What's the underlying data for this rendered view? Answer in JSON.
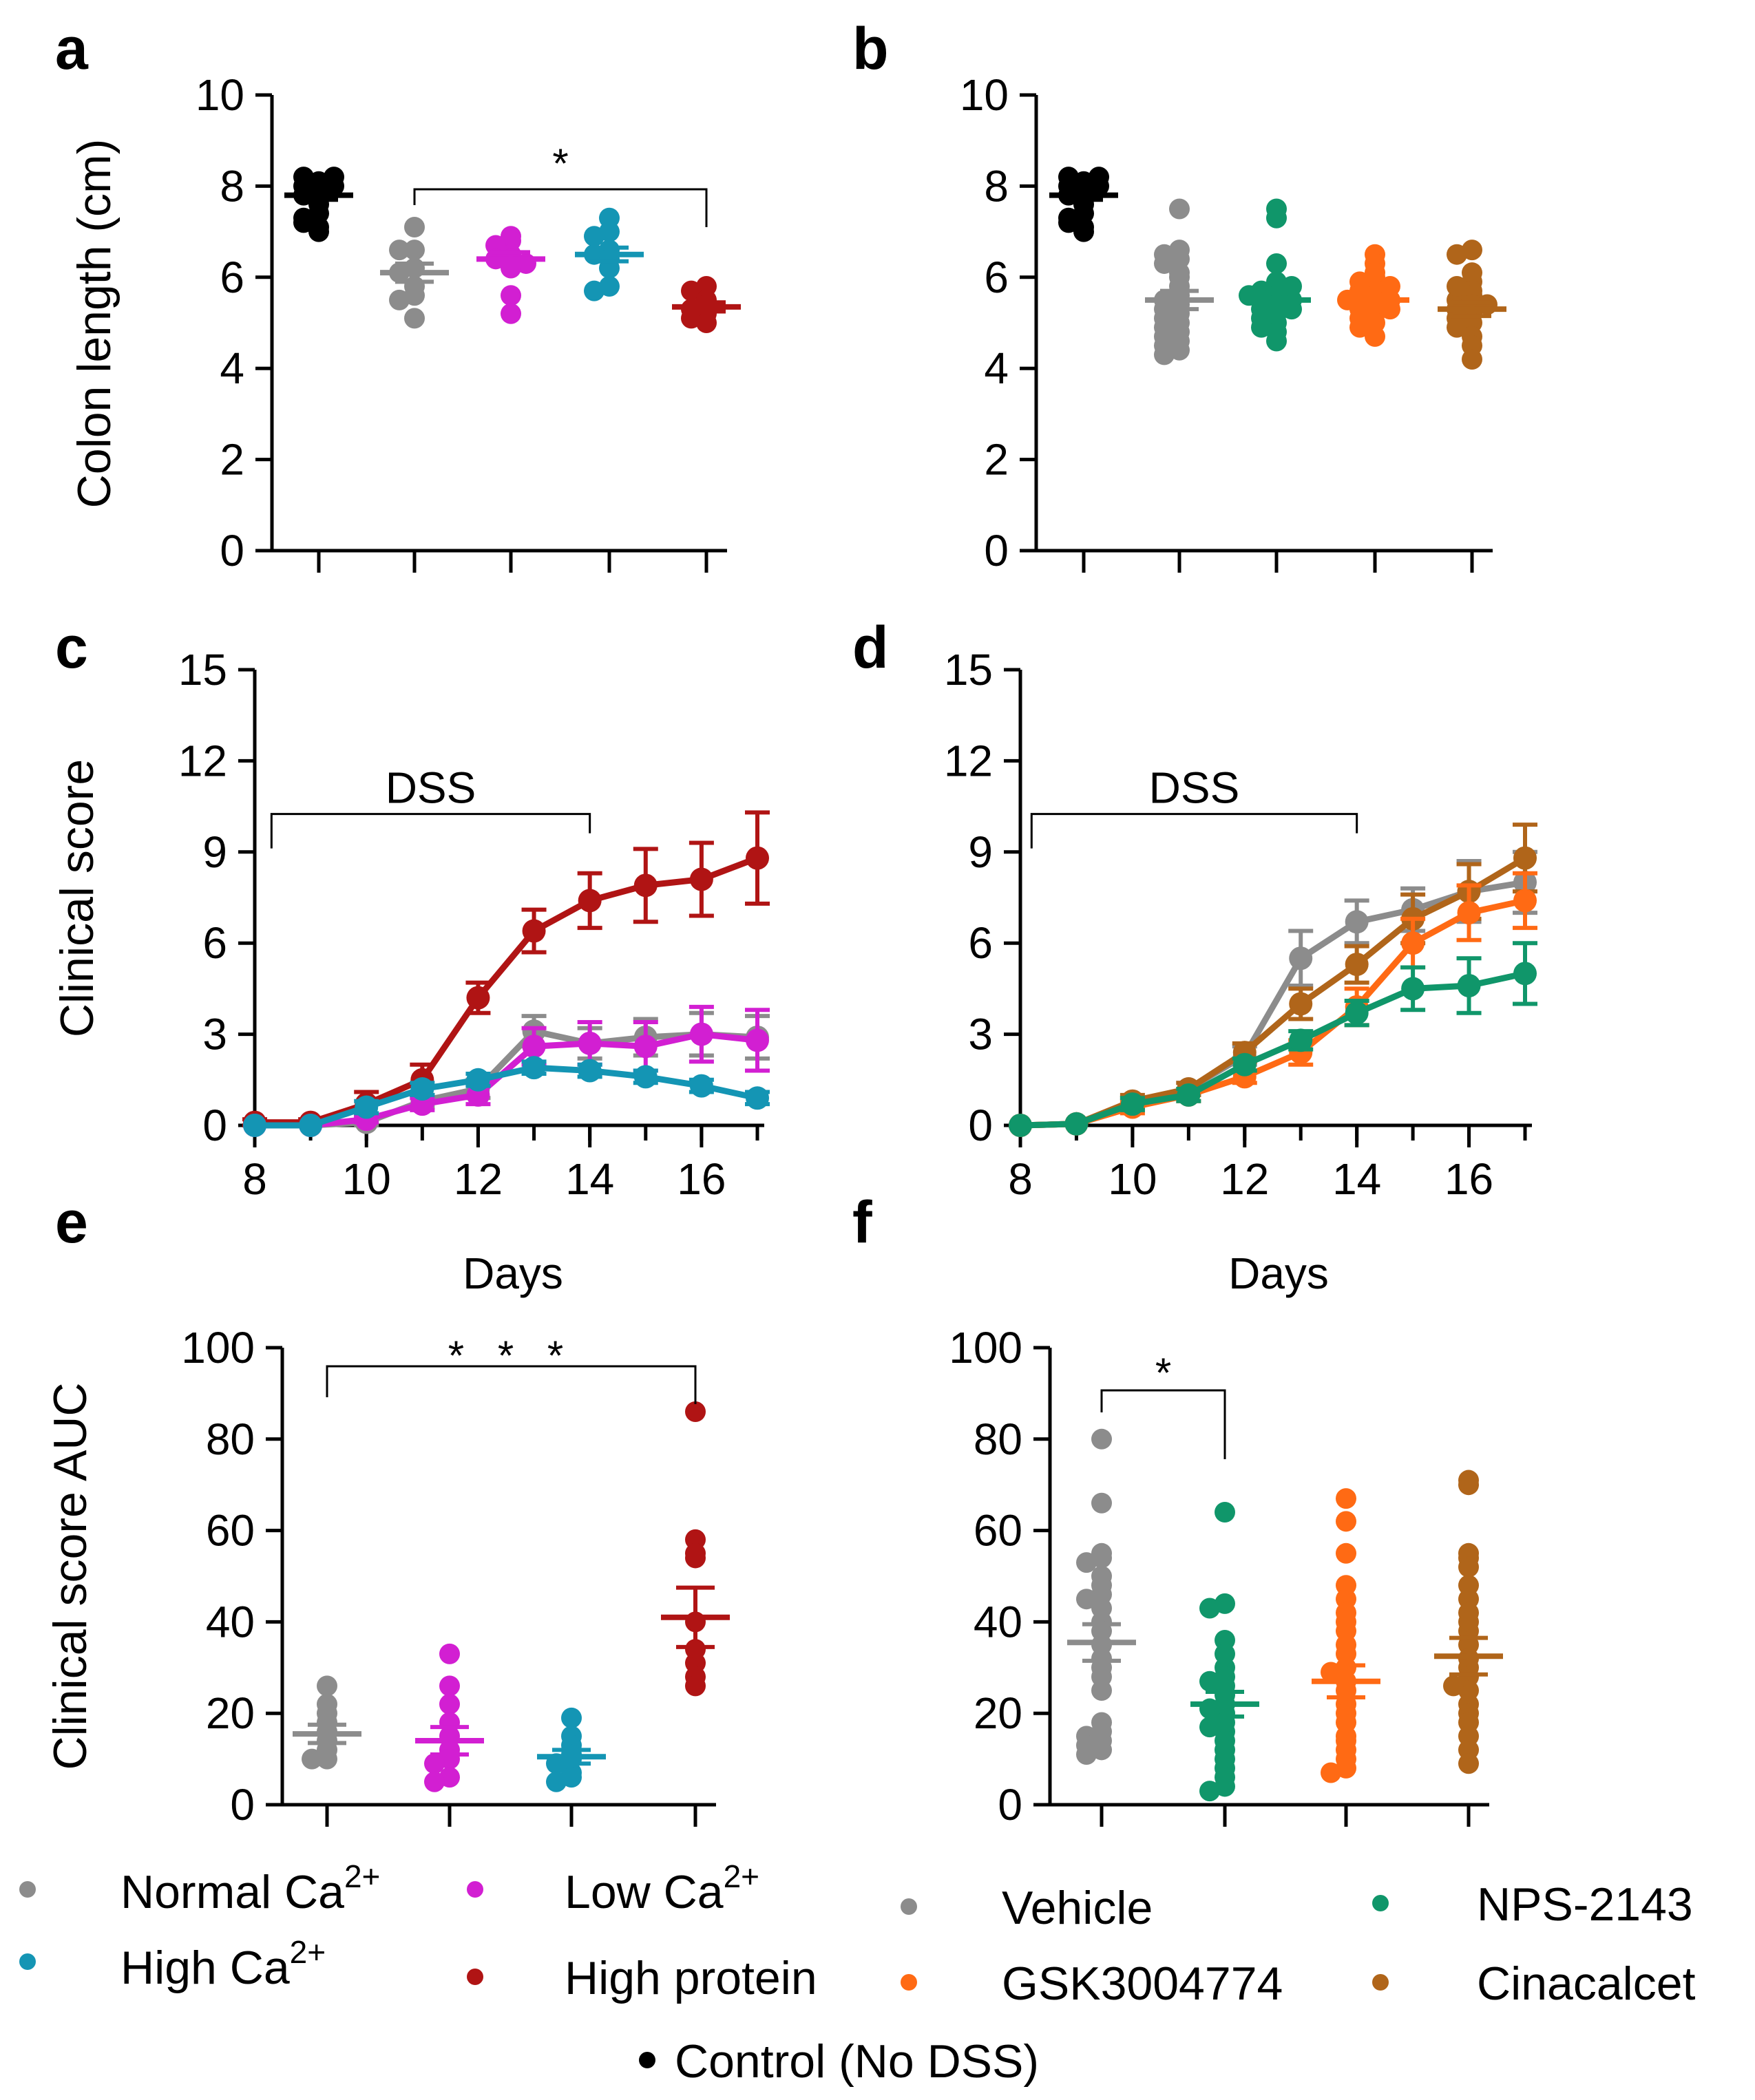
{
  "colors": {
    "control": "#000000",
    "normal_ca": "#8c8c8c",
    "low_ca": "#d21fd2",
    "high_ca": "#1495b4",
    "high_protein": "#b01414",
    "vehicle": "#8c8c8c",
    "nps2143": "#10966a",
    "gsk3004774": "#ff6a14",
    "cinacalcet": "#b0651a"
  },
  "chart_data": [
    {
      "panel": "a",
      "type": "scatter",
      "ylabel": "Colon length (cm)",
      "ylim": [
        0,
        10
      ],
      "yticks": [
        0,
        2,
        4,
        6,
        8,
        10
      ],
      "annotation": "*",
      "annotation_between": [
        "Normal Ca2+",
        "High protein"
      ],
      "groups": [
        {
          "name": "Control (No DSS)",
          "color_key": "control",
          "mean": 7.8,
          "sem": 0.1,
          "points": [
            7.0,
            7.1,
            7.2,
            7.4,
            7.6,
            7.7,
            7.8,
            7.9,
            8.0,
            8.0,
            8.1,
            8.2,
            8.2,
            7.3
          ]
        },
        {
          "name": "Normal Ca2+",
          "color_key": "normal_ca",
          "mean": 6.1,
          "sem": 0.2,
          "points": [
            7.1,
            6.6,
            6.6,
            6.2,
            6.1,
            5.8,
            5.6,
            5.5,
            5.1
          ]
        },
        {
          "name": "Low Ca2+",
          "color_key": "low_ca",
          "mean": 6.4,
          "sem": 0.15,
          "points": [
            6.9,
            6.8,
            6.7,
            6.5,
            6.4,
            6.4,
            6.3,
            6.2,
            5.6,
            5.2
          ]
        },
        {
          "name": "High Ca2+",
          "color_key": "high_ca",
          "mean": 6.5,
          "sem": 0.15,
          "points": [
            7.3,
            7.0,
            6.9,
            6.6,
            6.5,
            6.4,
            6.2,
            5.8,
            5.7
          ]
        },
        {
          "name": "High protein",
          "color_key": "high_protein",
          "mean": 5.35,
          "sem": 0.1,
          "points": [
            5.8,
            5.7,
            5.5,
            5.4,
            5.3,
            5.2,
            5.1,
            5.0
          ]
        }
      ]
    },
    {
      "panel": "b",
      "type": "scatter",
      "ylabel": "",
      "ylim": [
        0,
        10
      ],
      "yticks": [
        0,
        2,
        4,
        6,
        8,
        10
      ],
      "groups": [
        {
          "name": "Control (No DSS)",
          "color_key": "control",
          "mean": 7.8,
          "sem": 0.1,
          "points": [
            7.0,
            7.1,
            7.2,
            7.4,
            7.6,
            7.7,
            7.8,
            7.9,
            8.0,
            8.0,
            8.1,
            8.2,
            8.2,
            7.3
          ]
        },
        {
          "name": "Vehicle",
          "color_key": "vehicle",
          "mean": 5.5,
          "sem": 0.2,
          "points": [
            7.5,
            6.6,
            6.5,
            6.4,
            6.3,
            6.1,
            6.0,
            5.8,
            5.6,
            5.5,
            5.4,
            5.2,
            5.1,
            5.0,
            4.8,
            4.7,
            4.6,
            4.5,
            4.4,
            4.3,
            4.9,
            5.3
          ]
        },
        {
          "name": "NPS-2143",
          "color_key": "nps2143",
          "mean": 5.5,
          "sem": 0.15,
          "points": [
            7.5,
            7.3,
            6.3,
            5.9,
            5.8,
            5.7,
            5.6,
            5.5,
            5.5,
            5.4,
            5.3,
            5.2,
            5.1,
            5.0,
            4.9,
            4.8,
            4.6,
            5.6,
            5.8,
            5.3
          ]
        },
        {
          "name": "GSK3004774",
          "color_key": "gsk3004774",
          "mean": 5.5,
          "sem": 0.12,
          "points": [
            6.5,
            6.3,
            6.0,
            5.9,
            5.8,
            5.7,
            5.6,
            5.6,
            5.5,
            5.4,
            5.3,
            5.2,
            5.1,
            5.0,
            4.9,
            4.7,
            5.5,
            5.8,
            6.1,
            5.3
          ]
        },
        {
          "name": "Cinacalcet",
          "color_key": "cinacalcet",
          "mean": 5.3,
          "sem": 0.15,
          "points": [
            6.6,
            6.5,
            6.1,
            5.9,
            5.7,
            5.6,
            5.5,
            5.4,
            5.3,
            5.2,
            5.1,
            5.0,
            4.9,
            4.7,
            4.5,
            4.2,
            5.8,
            5.4
          ]
        }
      ]
    },
    {
      "panel": "c",
      "type": "line",
      "xlabel": "Days",
      "ylabel": "Clinical score",
      "xlim": [
        8,
        17
      ],
      "xticks": [
        8,
        10,
        12,
        14,
        16
      ],
      "ylim": [
        0,
        15
      ],
      "yticks": [
        0,
        3,
        6,
        9,
        12,
        15
      ],
      "annotation": "DSS",
      "annotation_span": [
        8.3,
        14
      ],
      "x": [
        8,
        9,
        10,
        11,
        12,
        13,
        14,
        15,
        16,
        17
      ],
      "series": [
        {
          "name": "High protein",
          "color_key": "high_protein",
          "values": [
            0.1,
            0.1,
            0.7,
            1.5,
            4.2,
            6.4,
            7.4,
            7.9,
            8.1,
            8.8
          ],
          "errors": [
            0.1,
            0.1,
            0.4,
            0.5,
            0.5,
            0.7,
            0.9,
            1.2,
            1.2,
            1.5
          ]
        },
        {
          "name": "Normal Ca2+",
          "color_key": "normal_ca",
          "values": [
            0,
            0,
            0.1,
            0.8,
            1.2,
            3.1,
            2.7,
            2.9,
            3.0,
            2.9
          ],
          "errors": [
            0,
            0,
            0.1,
            0.2,
            0.3,
            0.5,
            0.5,
            0.6,
            0.7,
            0.7
          ]
        },
        {
          "name": "Low Ca2+",
          "color_key": "low_ca",
          "values": [
            0,
            0,
            0.2,
            0.7,
            1.0,
            2.6,
            2.7,
            2.6,
            3.0,
            2.8
          ],
          "errors": [
            0,
            0,
            0.1,
            0.2,
            0.3,
            0.6,
            0.7,
            0.8,
            0.9,
            1.0
          ]
        },
        {
          "name": "High Ca2+",
          "color_key": "high_ca",
          "values": [
            0,
            0,
            0.6,
            1.2,
            1.5,
            1.9,
            1.8,
            1.6,
            1.3,
            0.9
          ],
          "errors": [
            0,
            0,
            0.2,
            0.2,
            0.2,
            0.2,
            0.2,
            0.2,
            0.2,
            0.2
          ]
        }
      ]
    },
    {
      "panel": "d",
      "type": "line",
      "xlabel": "Days",
      "ylabel": "",
      "xlim": [
        8,
        17
      ],
      "xticks": [
        8,
        10,
        12,
        14,
        16
      ],
      "ylim": [
        0,
        15
      ],
      "yticks": [
        0,
        3,
        6,
        9,
        12,
        15
      ],
      "annotation": "DSS",
      "annotation_span": [
        8.2,
        14
      ],
      "x": [
        8,
        9,
        10,
        11,
        12,
        13,
        14,
        15,
        16,
        17
      ],
      "series": [
        {
          "name": "Vehicle",
          "color_key": "vehicle",
          "values": [
            0,
            0.05,
            0.7,
            1.2,
            2.3,
            5.5,
            6.7,
            7.1,
            7.7,
            8.0
          ],
          "errors": [
            0,
            0.05,
            0.2,
            0.2,
            0.3,
            0.9,
            0.7,
            0.7,
            1.0,
            1.0
          ]
        },
        {
          "name": "Cinacalcet",
          "color_key": "cinacalcet",
          "values": [
            0,
            0.05,
            0.8,
            1.2,
            2.4,
            4.0,
            5.3,
            6.8,
            7.7,
            8.8
          ],
          "errors": [
            0,
            0.05,
            0.2,
            0.2,
            0.3,
            0.5,
            0.6,
            0.8,
            0.9,
            1.1
          ]
        },
        {
          "name": "GSK3004774",
          "color_key": "gsk3004774",
          "values": [
            0,
            0.05,
            0.6,
            1.0,
            1.6,
            2.4,
            3.9,
            6.0,
            7.0,
            7.4
          ],
          "errors": [
            0,
            0.05,
            0.2,
            0.2,
            0.2,
            0.4,
            0.6,
            0.8,
            0.9,
            0.9
          ]
        },
        {
          "name": "NPS-2143",
          "color_key": "nps2143",
          "values": [
            0,
            0.05,
            0.7,
            1.0,
            2.0,
            2.8,
            3.7,
            4.5,
            4.6,
            5.0
          ],
          "errors": [
            0,
            0.05,
            0.2,
            0.2,
            0.2,
            0.3,
            0.4,
            0.7,
            0.9,
            1.0
          ]
        }
      ]
    },
    {
      "panel": "e",
      "type": "scatter",
      "ylabel": "Clinical score AUC",
      "ylim": [
        0,
        100
      ],
      "yticks": [
        0,
        20,
        40,
        60,
        80,
        100
      ],
      "annotation": "* * *",
      "annotation_between": [
        "Normal Ca2+",
        "High protein"
      ],
      "groups": [
        {
          "name": "Normal Ca2+",
          "color_key": "normal_ca",
          "mean": 15.5,
          "sem": 2.0,
          "points": [
            26,
            22,
            20,
            18,
            16,
            14,
            12,
            10,
            10
          ]
        },
        {
          "name": "Low Ca2+",
          "color_key": "low_ca",
          "mean": 14.0,
          "sem": 3.0,
          "points": [
            33,
            26,
            22,
            18,
            15,
            12,
            10,
            9,
            6,
            5
          ]
        },
        {
          "name": "High Ca2+",
          "color_key": "high_ca",
          "mean": 10.5,
          "sem": 1.5,
          "points": [
            19,
            15,
            13,
            11,
            10,
            9,
            7,
            6,
            5
          ]
        },
        {
          "name": "High protein",
          "color_key": "high_protein",
          "mean": 41,
          "sem": 6.5,
          "points": [
            86,
            58,
            55,
            54,
            40,
            34,
            31,
            28,
            26
          ]
        }
      ]
    },
    {
      "panel": "f",
      "type": "scatter",
      "ylabel": "",
      "ylim": [
        0,
        100
      ],
      "yticks": [
        0,
        20,
        40,
        60,
        80,
        100
      ],
      "annotation": "*",
      "annotation_between": [
        "Vehicle",
        "NPS-2143"
      ],
      "groups": [
        {
          "name": "Vehicle",
          "color_key": "vehicle",
          "mean": 35.5,
          "sem": 4.0,
          "points": [
            80,
            66,
            55,
            54,
            53,
            50,
            48,
            46,
            45,
            43,
            40,
            38,
            35,
            32,
            30,
            18,
            16,
            15,
            14,
            12,
            11,
            13,
            25,
            28
          ]
        },
        {
          "name": "NPS-2143",
          "color_key": "nps2143",
          "mean": 22,
          "sem": 2.7,
          "points": [
            64,
            44,
            43,
            36,
            30,
            28,
            26,
            24,
            22,
            21,
            20,
            18,
            16,
            14,
            12,
            10,
            8,
            6,
            4,
            3,
            33,
            27,
            17
          ]
        },
        {
          "name": "GSK3004774",
          "color_key": "gsk3004774",
          "mean": 27,
          "sem": 3.5,
          "points": [
            67,
            62,
            55,
            48,
            45,
            42,
            38,
            35,
            33,
            30,
            27,
            25,
            22,
            20,
            18,
            15,
            12,
            10,
            8,
            7,
            40,
            29,
            14
          ]
        },
        {
          "name": "Cinacalcet",
          "color_key": "cinacalcet",
          "mean": 32.5,
          "sem": 4.0,
          "points": [
            71,
            70,
            55,
            54,
            52,
            48,
            45,
            42,
            38,
            35,
            32,
            30,
            28,
            25,
            22,
            20,
            18,
            15,
            12,
            9,
            40,
            26
          ]
        }
      ]
    }
  ],
  "legend": {
    "left": [
      {
        "label": "Normal Ca",
        "sup": "2+",
        "color_key": "normal_ca"
      },
      {
        "label": "Low Ca",
        "sup": "2+",
        "color_key": "low_ca"
      },
      {
        "label": "High Ca",
        "sup": "2+",
        "color_key": "high_ca"
      },
      {
        "label": "High protein",
        "sup": "",
        "color_key": "high_protein"
      }
    ],
    "right": [
      {
        "label": "Vehicle",
        "color_key": "vehicle"
      },
      {
        "label": "NPS-2143",
        "color_key": "nps2143"
      },
      {
        "label": "GSK3004774",
        "color_key": "gsk3004774"
      },
      {
        "label": "Cinacalcet",
        "color_key": "cinacalcet"
      }
    ],
    "control": {
      "label": "Control (No DSS)",
      "color_key": "control"
    }
  }
}
